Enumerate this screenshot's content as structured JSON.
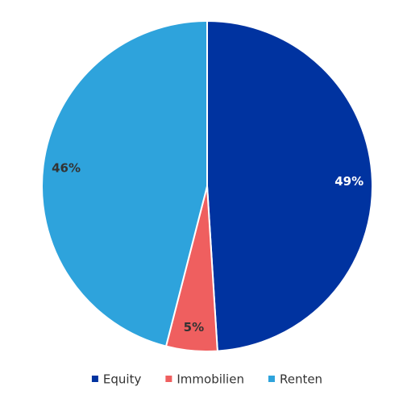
{
  "chart_data": {
    "type": "pie",
    "categories": [
      "Equity",
      "Immobilien",
      "Renten"
    ],
    "values": [
      49,
      5,
      46
    ],
    "value_labels": [
      "49%",
      "5%",
      "46%"
    ],
    "colors": [
      "#0033a0",
      "#ef5f5f",
      "#2ea3dc"
    ]
  }
}
